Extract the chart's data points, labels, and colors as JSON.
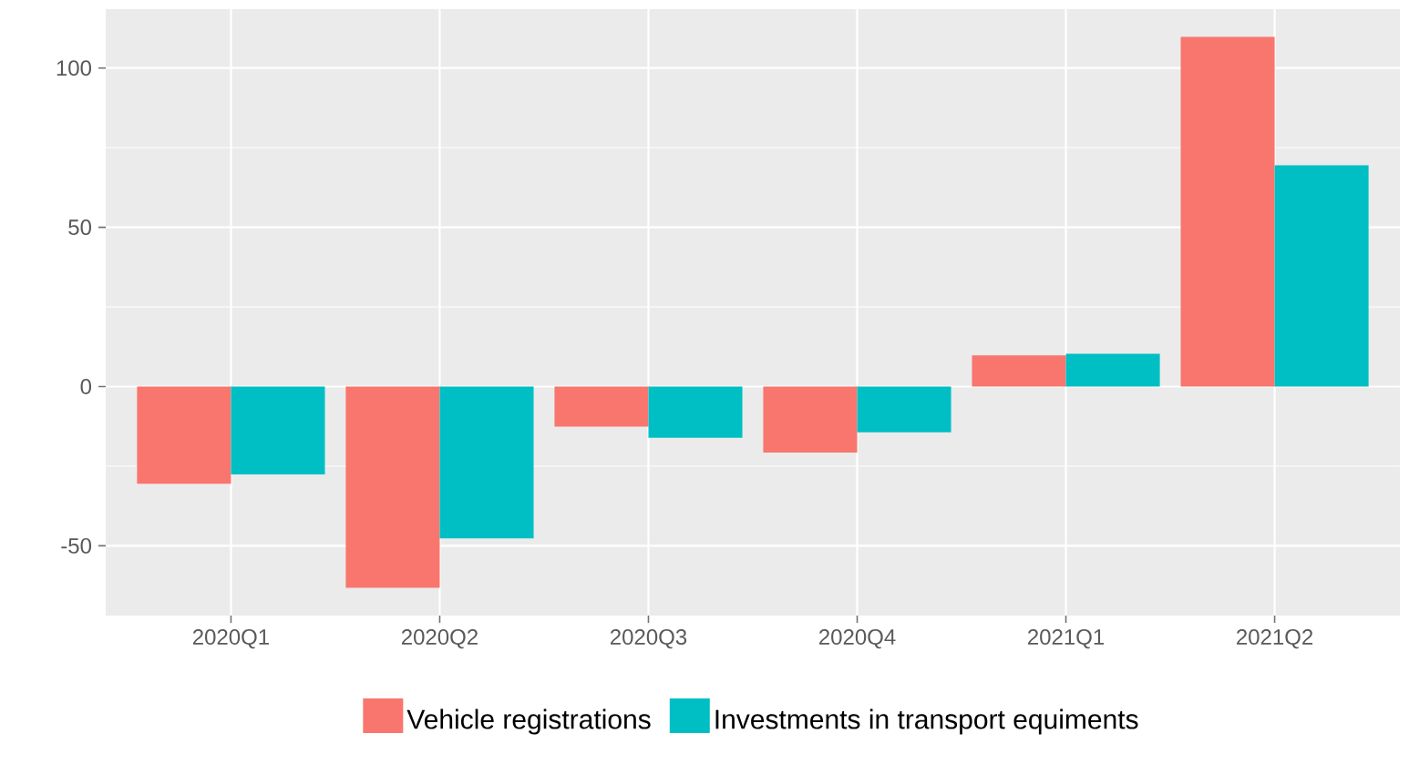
{
  "chart_data": {
    "type": "bar",
    "categories": [
      "2020Q1",
      "2020Q2",
      "2020Q3",
      "2020Q4",
      "2021Q1",
      "2021Q2"
    ],
    "series": [
      {
        "name": "Vehicle registrations",
        "color": "#f8766d",
        "values": [
          -30.5,
          -63.2,
          -12.6,
          -20.7,
          9.8,
          109.8
        ]
      },
      {
        "name": "Investments in transport equiments",
        "color": "#00bfc4",
        "values": [
          -27.6,
          -47.7,
          -16.1,
          -14.4,
          10.3,
          69.5
        ]
      }
    ],
    "ylim": [
      -71.9,
      118.5
    ],
    "yticks": [
      -50,
      0,
      50,
      100
    ],
    "grid": true,
    "legend": "bottom"
  }
}
